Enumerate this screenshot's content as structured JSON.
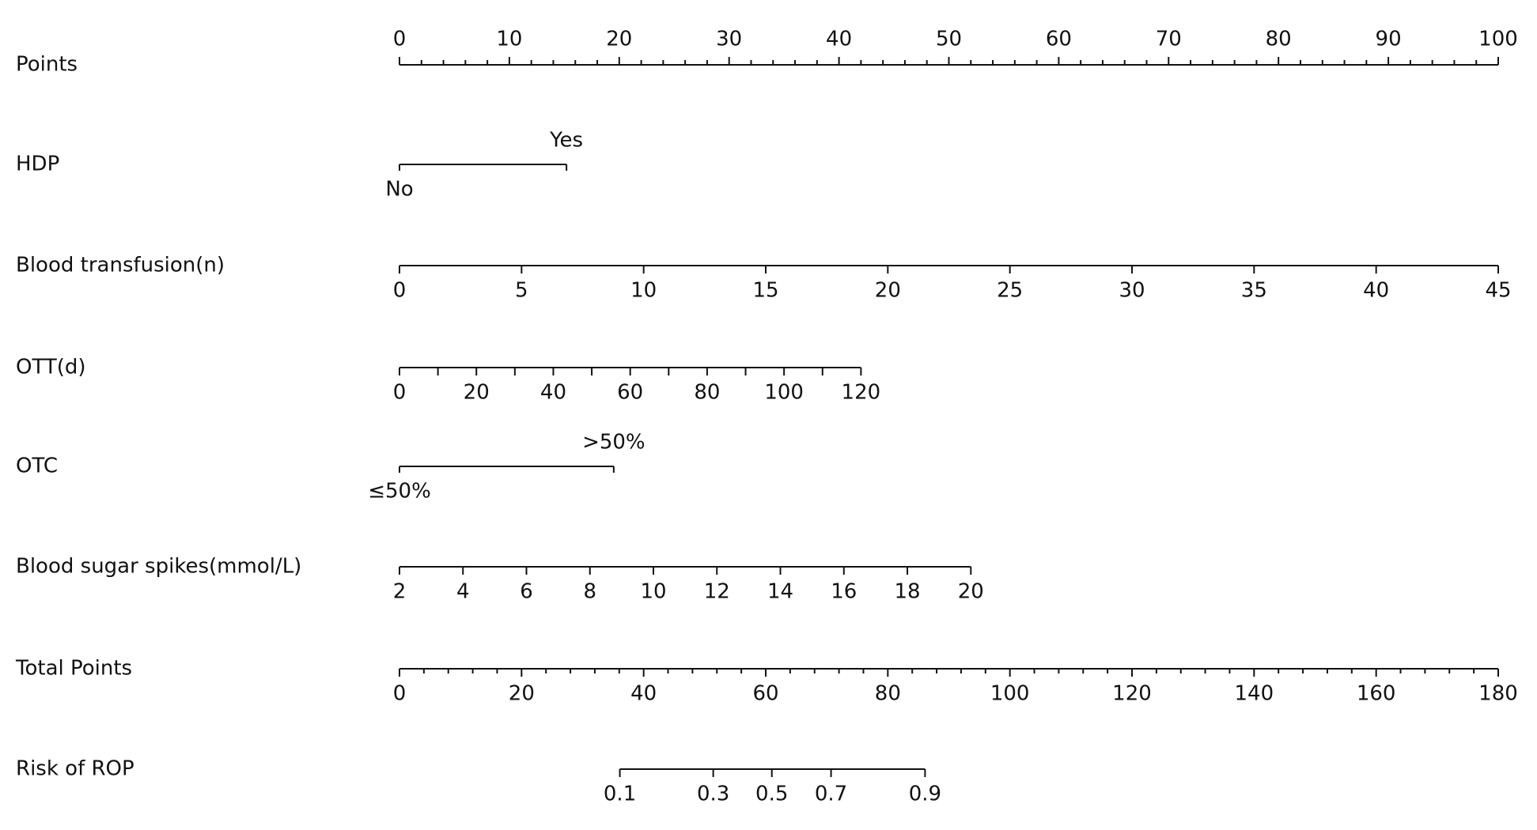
{
  "chart_data": {
    "type": "nomogram",
    "points_axis": {
      "label": "Points",
      "lim": [
        0,
        100
      ],
      "ticks": [
        0,
        10,
        20,
        30,
        40,
        50,
        60,
        70,
        80,
        90,
        100
      ],
      "minor_ticks": [
        2,
        4,
        6,
        8,
        12,
        14,
        16,
        18,
        22,
        24,
        26,
        28,
        32,
        34,
        36,
        38,
        42,
        44,
        46,
        48,
        52,
        54,
        56,
        58,
        62,
        64,
        66,
        68,
        72,
        74,
        76,
        78,
        82,
        84,
        86,
        88,
        92,
        94,
        96,
        98
      ]
    },
    "variables": [
      {
        "label": "HDP",
        "categories": [
          "No",
          "Yes"
        ],
        "points": [
          0,
          15.2
        ]
      },
      {
        "label": "Blood transfusion(n)",
        "lim": [
          0,
          45
        ],
        "points": [
          0,
          100
        ],
        "ticks": [
          0,
          5,
          10,
          15,
          20,
          25,
          30,
          35,
          40,
          45
        ]
      },
      {
        "label": "OTT(d)",
        "lim": [
          0,
          120
        ],
        "points": [
          0,
          42
        ],
        "ticks": [
          0,
          20,
          40,
          60,
          80,
          100,
          120
        ],
        "minor_ticks": [
          10,
          30,
          50,
          70,
          90,
          110
        ]
      },
      {
        "label": "OTC",
        "categories": [
          "≤50%",
          ">50%"
        ],
        "points": [
          0,
          19.5
        ]
      },
      {
        "label": "Blood sugar spikes(mmol/L)",
        "lim": [
          2,
          20
        ],
        "points": [
          0,
          52
        ],
        "ticks": [
          2,
          4,
          6,
          8,
          10,
          12,
          14,
          16,
          18,
          20
        ]
      }
    ],
    "total_axis": {
      "label": "Total Points",
      "lim": [
        0,
        180
      ],
      "ticks": [
        0,
        20,
        40,
        60,
        80,
        100,
        120,
        140,
        160,
        180
      ],
      "minor_ticks": [
        4,
        8,
        12,
        16,
        24,
        28,
        32,
        36,
        44,
        48,
        52,
        56,
        64,
        68,
        72,
        76,
        84,
        88,
        92,
        96,
        104,
        108,
        112,
        116,
        124,
        128,
        132,
        136,
        144,
        148,
        152,
        156,
        164,
        168,
        172,
        176
      ]
    },
    "risk": {
      "label": "Risk of ROP",
      "ticks": [
        0.1,
        0.3,
        0.5,
        0.7,
        0.9
      ],
      "total_points": [
        36.1,
        51.4,
        61.0,
        70.7,
        86.1
      ]
    }
  }
}
